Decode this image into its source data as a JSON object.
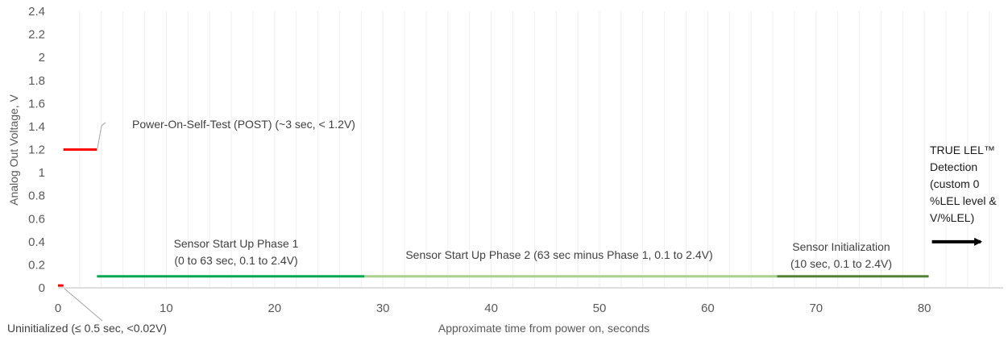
{
  "chart_data": {
    "type": "line",
    "title": "",
    "xlabel": "Approximate time from power on, seconds",
    "ylabel": "Analog Out Voltage, V",
    "xlim": [
      0,
      87
    ],
    "ylim": [
      0,
      2.4
    ],
    "x_ticks": [
      0,
      10,
      20,
      30,
      40,
      50,
      60,
      70,
      80
    ],
    "x_tick_labels": [
      "0",
      "10",
      "20",
      "30",
      "40",
      "50",
      "60",
      "70",
      "80"
    ],
    "y_ticks": [
      0,
      0.2,
      0.4,
      0.6,
      0.8,
      1,
      1.2,
      1.4,
      1.6,
      1.8,
      2,
      2.2,
      2.4
    ],
    "y_tick_labels": [
      "0",
      "0.2",
      "0.4",
      "0.6",
      "0.8",
      "1",
      "1.2",
      "1.4",
      "1.6",
      "1.8",
      "2",
      "2.2",
      "2.4"
    ],
    "grid": "vertical minor gridlines",
    "series": [
      {
        "key": "uninit",
        "color": "#ff0000",
        "x": [
          0,
          0.5
        ],
        "y": [
          0.02,
          0.02
        ]
      },
      {
        "key": "post",
        "color": "#ff0000",
        "x": [
          0.5,
          3.6
        ],
        "y": [
          1.2,
          1.2
        ]
      },
      {
        "key": "phase1",
        "color": "#00a651",
        "x": [
          3.6,
          28.3
        ],
        "y": [
          0.1,
          0.1
        ]
      },
      {
        "key": "phase2",
        "color": "#a9d18e",
        "x": [
          28.3,
          66.4
        ],
        "y": [
          0.1,
          0.1
        ]
      },
      {
        "key": "init",
        "color": "#548235",
        "x": [
          66.4,
          80.4
        ],
        "y": [
          0.1,
          0.1
        ]
      }
    ],
    "annotations": [
      {
        "key": "post",
        "lines": [
          "Power-On-Self-Test (POST) (~3 sec, < 1.2V)"
        ]
      },
      {
        "key": "uninit",
        "lines": [
          "Uninitialized (≤ 0.5 sec, <0.02V)"
        ]
      },
      {
        "key": "phase1",
        "lines": [
          "Sensor Start Up Phase 1",
          "(0 to 63 sec, 0.1 to 2.4V)"
        ]
      },
      {
        "key": "phase2",
        "lines": [
          "Sensor Start Up Phase 2 (63 sec minus Phase 1, 0.1 to 2.4V)"
        ]
      },
      {
        "key": "init",
        "lines": [
          "Sensor Initialization",
          "(10 sec, 0.1 to 2.4V)"
        ]
      },
      {
        "key": "detect",
        "lines": [
          "TRUE LEL™",
          "Detection",
          "(custom 0",
          "%LEL level &",
          "V/%LEL)"
        ]
      }
    ],
    "arrow": {
      "color": "#000000",
      "x": [
        80.7,
        85.2
      ],
      "y": [
        0.4,
        0.4
      ]
    }
  }
}
